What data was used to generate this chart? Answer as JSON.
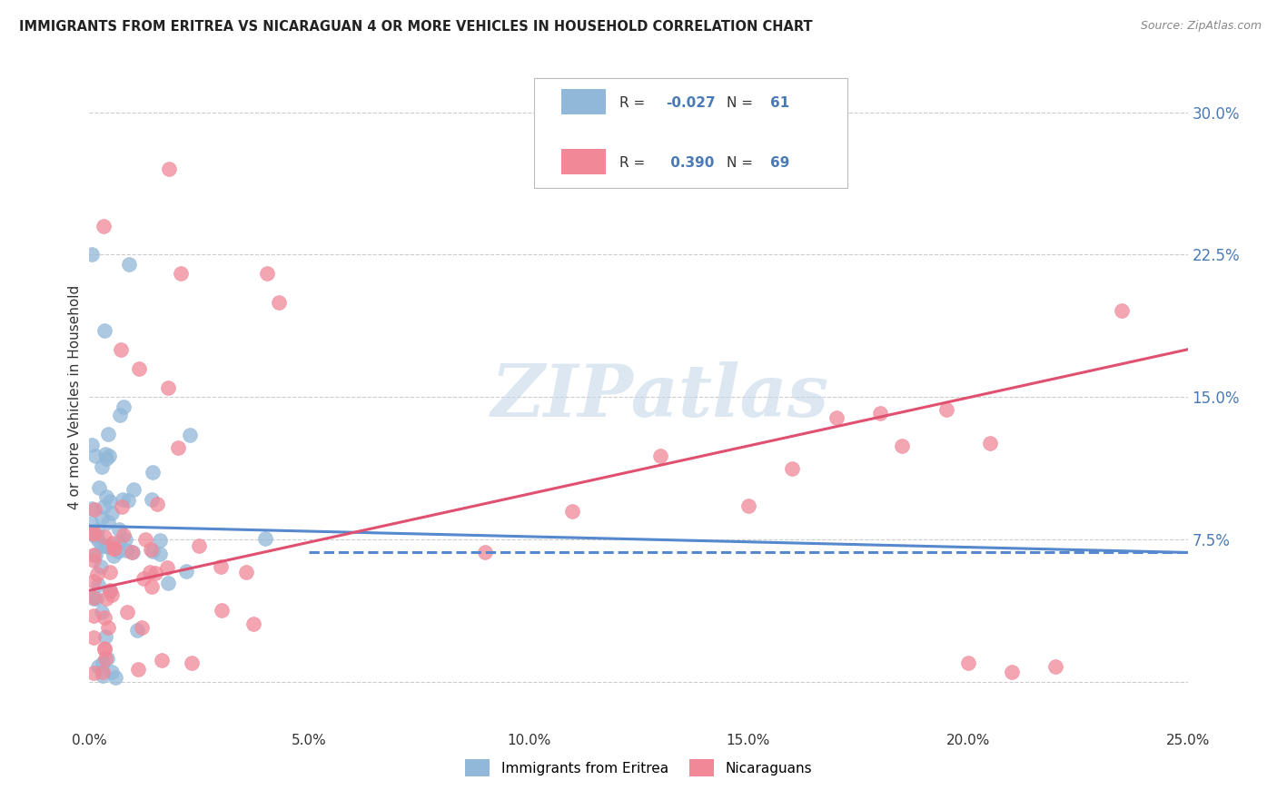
{
  "title": "IMMIGRANTS FROM ERITREA VS NICARAGUAN 4 OR MORE VEHICLES IN HOUSEHOLD CORRELATION CHART",
  "source": "Source: ZipAtlas.com",
  "ylabel": "4 or more Vehicles in Household",
  "xmin": 0.0,
  "xmax": 0.25,
  "ymin": -0.025,
  "ymax": 0.325,
  "color_eritrea": "#92b8d9",
  "color_nicaraguan": "#f08898",
  "color_eritrea_line": "#5588cc",
  "color_nicaraguan_line": "#e05070",
  "color_right_ticks": "#4a7ab5",
  "watermark_color": "#c5d8ea",
  "legend_eritrea_label": "Immigrants from Eritrea",
  "legend_nicaraguan_label": "Nicaraguans",
  "er_line_x0": 0.0,
  "er_line_x1": 0.25,
  "er_line_y0": 0.082,
  "er_line_y1": 0.068,
  "ni_line_x0": 0.0,
  "ni_line_x1": 0.25,
  "ni_line_y0": 0.048,
  "ni_line_y1": 0.175,
  "ytick_positions": [
    0.0,
    0.075,
    0.15,
    0.225,
    0.3
  ],
  "ytick_labels": [
    "",
    "7.5%",
    "15.0%",
    "22.5%",
    "30.0%"
  ],
  "xtick_positions": [
    0.0,
    0.05,
    0.1,
    0.15,
    0.2,
    0.25
  ],
  "xtick_labels": [
    "0.0%",
    "5.0%",
    "10.0%",
    "15.0%",
    "20.0%",
    "25.0%"
  ]
}
